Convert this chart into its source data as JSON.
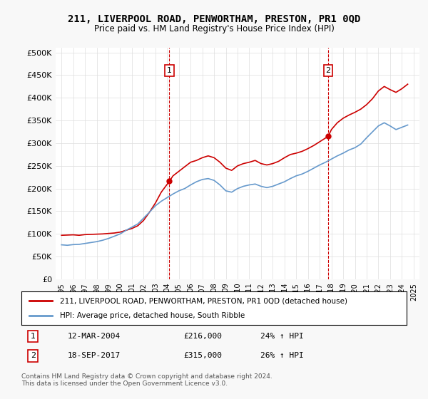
{
  "title": "211, LIVERPOOL ROAD, PENWORTHAM, PRESTON, PR1 0QD",
  "subtitle": "Price paid vs. HM Land Registry's House Price Index (HPI)",
  "red_label": "211, LIVERPOOL ROAD, PENWORTHAM, PRESTON, PR1 0QD (detached house)",
  "blue_label": "HPI: Average price, detached house, South Ribble",
  "footnote": "Contains HM Land Registry data © Crown copyright and database right 2024.\nThis data is licensed under the Open Government Licence v3.0.",
  "annotation1": {
    "num": "1",
    "date": "12-MAR-2004",
    "price": "£216,000",
    "change": "24% ↑ HPI"
  },
  "annotation2": {
    "num": "2",
    "date": "18-SEP-2017",
    "price": "£315,000",
    "change": "26% ↑ HPI"
  },
  "red_vline1_x": 2004.19,
  "red_vline2_x": 2017.72,
  "red_dot1_y": 216000,
  "red_dot2_y": 315000,
  "ylim": [
    0,
    510000
  ],
  "xlim_start": 1994.5,
  "xlim_end": 2025.5,
  "red_line": {
    "x": [
      1995,
      1995.5,
      1996,
      1996.5,
      1997,
      1997.5,
      1998,
      1998.5,
      1999,
      1999.5,
      2000,
      2000.5,
      2001,
      2001.5,
      2002,
      2002.5,
      2003,
      2003.5,
      2004.19,
      2004.5,
      2005,
      2005.5,
      2006,
      2006.5,
      2007,
      2007.5,
      2008,
      2008.5,
      2009,
      2009.5,
      2010,
      2010.5,
      2011,
      2011.5,
      2012,
      2012.5,
      2013,
      2013.5,
      2014,
      2014.5,
      2015,
      2015.5,
      2016,
      2016.5,
      2017.72,
      2018,
      2018.5,
      2019,
      2019.5,
      2020,
      2020.5,
      2021,
      2021.5,
      2022,
      2022.5,
      2023,
      2023.5,
      2024,
      2024.5
    ],
    "y": [
      97000,
      97500,
      98000,
      97000,
      98500,
      99000,
      99500,
      100000,
      101000,
      102000,
      104000,
      108000,
      112000,
      118000,
      130000,
      148000,
      168000,
      192000,
      216000,
      228000,
      238000,
      248000,
      258000,
      262000,
      268000,
      272000,
      268000,
      258000,
      245000,
      240000,
      250000,
      255000,
      258000,
      262000,
      255000,
      252000,
      255000,
      260000,
      268000,
      275000,
      278000,
      282000,
      288000,
      295000,
      315000,
      330000,
      345000,
      355000,
      362000,
      368000,
      375000,
      385000,
      398000,
      415000,
      425000,
      418000,
      412000,
      420000,
      430000
    ]
  },
  "blue_line": {
    "x": [
      1995,
      1995.5,
      1996,
      1996.5,
      1997,
      1997.5,
      1998,
      1998.5,
      1999,
      1999.5,
      2000,
      2000.5,
      2001,
      2001.5,
      2002,
      2002.5,
      2003,
      2003.5,
      2004,
      2004.5,
      2005,
      2005.5,
      2006,
      2006.5,
      2007,
      2007.5,
      2008,
      2008.5,
      2009,
      2009.5,
      2010,
      2010.5,
      2011,
      2011.5,
      2012,
      2012.5,
      2013,
      2013.5,
      2014,
      2014.5,
      2015,
      2015.5,
      2016,
      2016.5,
      2017,
      2017.5,
      2018,
      2018.5,
      2019,
      2019.5,
      2020,
      2020.5,
      2021,
      2021.5,
      2022,
      2022.5,
      2023,
      2023.5,
      2024,
      2024.5
    ],
    "y": [
      76000,
      75000,
      76500,
      77000,
      79000,
      81000,
      83000,
      86000,
      90000,
      95000,
      100000,
      108000,
      115000,
      122000,
      135000,
      148000,
      162000,
      172000,
      180000,
      188000,
      195000,
      200000,
      208000,
      215000,
      220000,
      222000,
      218000,
      208000,
      195000,
      192000,
      200000,
      205000,
      208000,
      210000,
      205000,
      202000,
      205000,
      210000,
      215000,
      222000,
      228000,
      232000,
      238000,
      245000,
      252000,
      258000,
      265000,
      272000,
      278000,
      285000,
      290000,
      298000,
      312000,
      325000,
      338000,
      345000,
      338000,
      330000,
      335000,
      340000
    ]
  },
  "bg_color": "#f8f8f8",
  "plot_bg": "#ffffff",
  "red_color": "#cc0000",
  "blue_color": "#6699cc",
  "vline_color": "#cc0000",
  "grid_color": "#dddddd"
}
